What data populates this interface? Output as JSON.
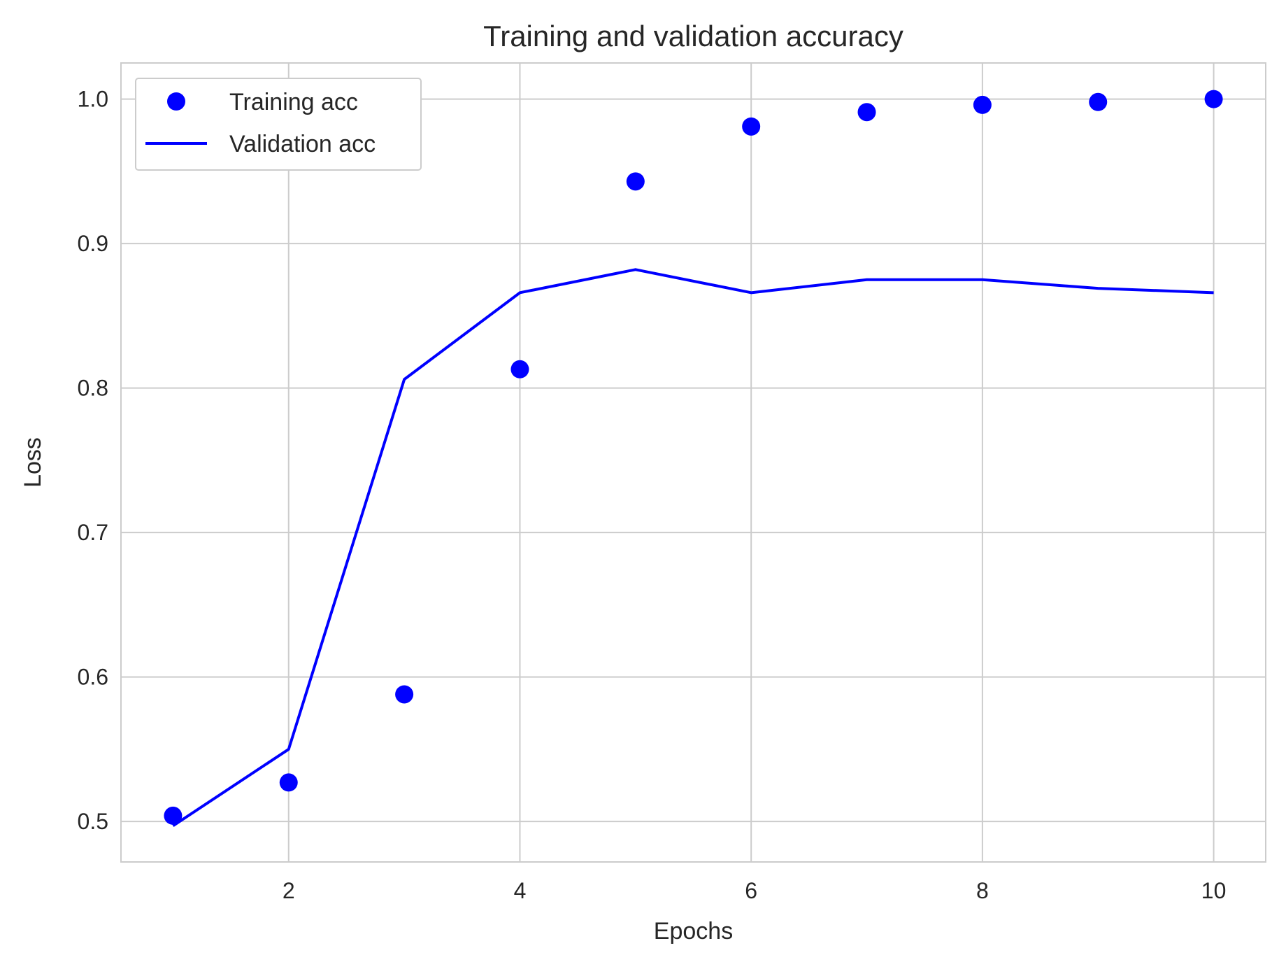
{
  "chart_data": {
    "type": "line",
    "title": "Training and validation accuracy",
    "xlabel": "Epochs",
    "ylabel": "Loss",
    "xlim": [
      0.55,
      10.45
    ],
    "ylim": [
      0.472,
      1.025
    ],
    "xticks": [
      2,
      4,
      6,
      8,
      10
    ],
    "yticks": [
      0.5,
      0.6,
      0.7,
      0.8,
      0.9,
      1.0
    ],
    "ytick_labels": [
      "0.5",
      "0.6",
      "0.7",
      "0.8",
      "0.9",
      "1.0"
    ],
    "grid": true,
    "legend": "top-left",
    "x": [
      1,
      2,
      3,
      4,
      5,
      6,
      7,
      8,
      9,
      10
    ],
    "series": [
      {
        "name": "Training acc",
        "style": "markers",
        "color": "#0000ff",
        "values": [
          0.504,
          0.527,
          0.588,
          0.813,
          0.943,
          0.981,
          0.991,
          0.996,
          0.998,
          1.0
        ]
      },
      {
        "name": "Validation acc",
        "style": "line",
        "color": "#0000ff",
        "values": [
          0.497,
          0.55,
          0.806,
          0.866,
          0.882,
          0.866,
          0.875,
          0.875,
          0.869,
          0.866
        ]
      }
    ]
  }
}
